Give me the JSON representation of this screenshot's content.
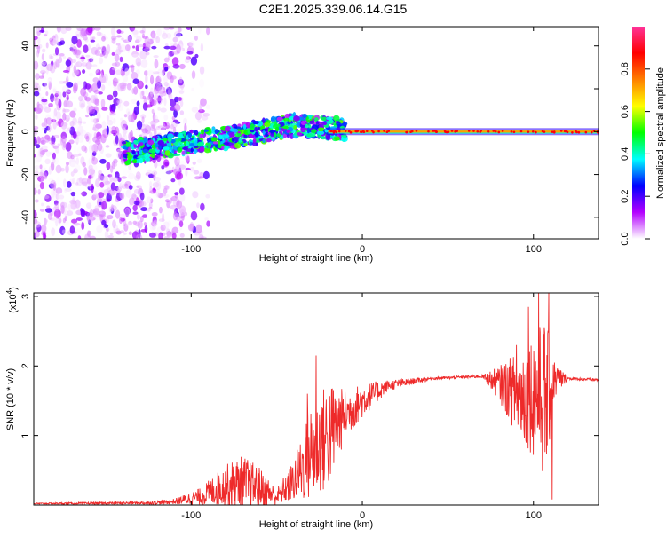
{
  "page_title": "C2E1.2025.339.06.14.G15",
  "chart_data": [
    {
      "type": "heatmap",
      "title": "C2E1.2025.339.06.14.G15",
      "xlabel": "Height of straight line (km)",
      "ylabel": "Frequency (Hz)",
      "xlim": [
        -192,
        138
      ],
      "ylim": [
        -50,
        49
      ],
      "x_ticks": [
        -100,
        0,
        100
      ],
      "x_tick_labels": [
        "-100",
        "0",
        "100"
      ],
      "y_ticks": [
        -40,
        -20,
        0,
        20,
        40
      ],
      "y_tick_labels": [
        "-40",
        "-20",
        "0",
        "20",
        "40"
      ],
      "colorbar": {
        "label": "Normalized spectral amplitude",
        "range": [
          0,
          1
        ],
        "ticks": [
          0.0,
          0.2,
          0.4,
          0.6,
          0.8
        ],
        "tick_labels": [
          "0.0",
          "0.2",
          "0.4",
          "0.6",
          "0.8"
        ],
        "colors": [
          "#ffffff",
          "#b400ff",
          "#0000ff",
          "#00ffff",
          "#00ff00",
          "#ffff00",
          "#ff8000",
          "#ff0000",
          "#ff3399"
        ]
      },
      "features": {
        "noise_region_x": [
          -192,
          -105
        ],
        "rising_band": [
          [
            -140,
            -10
          ],
          [
            -110,
            -6
          ],
          [
            -80,
            -3
          ],
          [
            -60,
            0
          ],
          [
            -40,
            3
          ],
          [
            -25,
            2
          ],
          [
            -10,
            1
          ]
        ],
        "carrier_frequency": 0,
        "carrier_x": [
          -20,
          138
        ]
      }
    },
    {
      "type": "line",
      "xlabel": "Height of straight line (km)",
      "ylabel": "SNR (10 * v/v)",
      "y_multiplier_label": "(x10",
      "y_multiplier_exp": "4",
      "xlim": [
        -192,
        138
      ],
      "ylim": [
        0,
        3.05
      ],
      "x_ticks": [
        -100,
        0,
        100
      ],
      "x_tick_labels": [
        "-100",
        "0",
        "100"
      ],
      "y_ticks": [
        1,
        2,
        3
      ],
      "y_tick_labels": [
        "1",
        "2",
        "3"
      ],
      "line_color": "#ee2a2a",
      "series": [
        {
          "name": "SNR",
          "envelope": [
            {
              "x": -192,
              "base": 0.02,
              "amp": 0.01
            },
            {
              "x": -125,
              "base": 0.03,
              "amp": 0.02
            },
            {
              "x": -110,
              "base": 0.05,
              "amp": 0.04
            },
            {
              "x": -95,
              "base": 0.12,
              "amp": 0.12
            },
            {
              "x": -80,
              "base": 0.28,
              "amp": 0.3
            },
            {
              "x": -70,
              "base": 0.32,
              "amp": 0.4
            },
            {
              "x": -60,
              "base": 0.25,
              "amp": 0.3
            },
            {
              "x": -50,
              "base": 0.12,
              "amp": 0.12
            },
            {
              "x": -40,
              "base": 0.35,
              "amp": 0.3
            },
            {
              "x": -30,
              "base": 0.75,
              "amp": 0.7
            },
            {
              "x": -20,
              "base": 1.0,
              "amp": 0.8
            },
            {
              "x": -10,
              "base": 1.3,
              "amp": 0.35
            },
            {
              "x": 0,
              "base": 1.5,
              "amp": 0.25
            },
            {
              "x": 15,
              "base": 1.72,
              "amp": 0.08
            },
            {
              "x": 40,
              "base": 1.82,
              "amp": 0.02
            },
            {
              "x": 70,
              "base": 1.85,
              "amp": 0.02
            },
            {
              "x": 80,
              "base": 1.75,
              "amp": 0.25
            },
            {
              "x": 90,
              "base": 1.6,
              "amp": 0.6
            },
            {
              "x": 100,
              "base": 1.6,
              "amp": 0.9
            },
            {
              "x": 107,
              "base": 1.5,
              "amp": 1.2
            },
            {
              "x": 112,
              "base": 1.8,
              "amp": 0.3
            },
            {
              "x": 120,
              "base": 1.82,
              "amp": 0.02
            },
            {
              "x": 138,
              "base": 1.8,
              "amp": 0.02
            }
          ],
          "spikes": [
            [
              -27,
              2.15
            ],
            [
              -32,
              1.6
            ],
            [
              103,
              3.05
            ],
            [
              109,
              3.05
            ],
            [
              111,
              0.08
            ],
            [
              97,
              2.85
            ],
            [
              90,
              2.3
            ]
          ]
        }
      ]
    }
  ]
}
